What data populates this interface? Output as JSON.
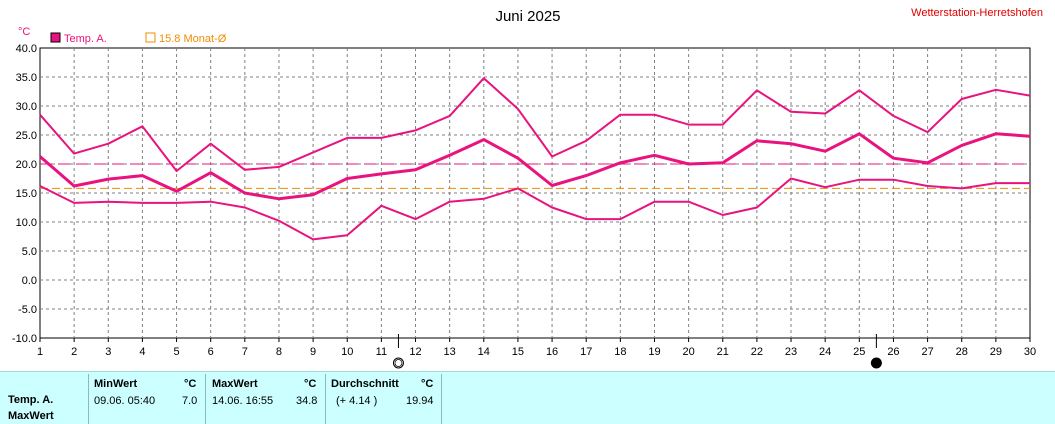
{
  "chart_data": {
    "type": "line",
    "title": "Juni 2025",
    "station": "Wetterstation-Herretshofen",
    "unit": "°C",
    "x": [
      1,
      2,
      3,
      4,
      5,
      6,
      7,
      8,
      9,
      10,
      11,
      12,
      13,
      14,
      15,
      16,
      17,
      18,
      19,
      20,
      21,
      22,
      23,
      24,
      25,
      26,
      27,
      28,
      29,
      30
    ],
    "xlim": [
      1,
      30
    ],
    "ylim": [
      -10,
      40
    ],
    "yticks": [
      "-10.0",
      "-5.0",
      "0.0",
      "5.0",
      "10.0",
      "15.0",
      "20.0",
      "25.0",
      "30.0",
      "35.0",
      "40.0"
    ],
    "grid": true,
    "legend_position": "top-left",
    "legend": [
      {
        "label": "Temp. A.",
        "color": "#e8137e"
      },
      {
        "label": "15.8 Monat-Ø",
        "color": "#f08c00"
      }
    ],
    "series": [
      {
        "role": "max",
        "color": "#e8137e",
        "values": [
          28.5,
          21.8,
          23.5,
          26.5,
          18.8,
          23.5,
          19.0,
          19.5,
          22.0,
          24.5,
          24.5,
          25.8,
          28.3,
          34.8,
          29.5,
          21.3,
          24.0,
          28.5,
          28.5,
          26.8,
          26.8,
          32.7,
          29.0,
          28.7,
          32.7,
          28.3,
          25.5,
          31.2,
          32.8,
          31.8
        ]
      },
      {
        "role": "mean",
        "color": "#e8137e",
        "values": [
          21.3,
          16.2,
          17.4,
          18.0,
          15.3,
          18.5,
          15.0,
          14.0,
          14.7,
          17.5,
          18.3,
          19.0,
          21.5,
          24.2,
          21.0,
          16.3,
          18.0,
          20.2,
          21.5,
          20.0,
          20.2,
          24.0,
          23.5,
          22.2,
          25.2,
          21.0,
          20.2,
          23.2,
          25.2,
          24.8
        ]
      },
      {
        "role": "min",
        "color": "#e8137e",
        "values": [
          16.2,
          13.3,
          13.5,
          13.3,
          13.3,
          13.5,
          12.5,
          10.2,
          7.0,
          7.7,
          12.8,
          10.5,
          13.5,
          14.0,
          15.8,
          12.5,
          10.5,
          10.5,
          13.5,
          13.5,
          11.2,
          12.5,
          17.5,
          16.0,
          17.3,
          17.3,
          16.2,
          15.8,
          16.7,
          16.7
        ]
      }
    ],
    "reference_lines": [
      {
        "value": 20.0,
        "color": "#e8137e",
        "style": "dashed"
      },
      {
        "value": 15.8,
        "color": "#f08c00",
        "style": "dashed"
      }
    ],
    "moon_phases": [
      {
        "day": 11.5,
        "phase": "first-quarter"
      },
      {
        "day": 25.5,
        "phase": "new"
      }
    ]
  },
  "stats": {
    "row_label_1": "Temp. A.",
    "row_label_2": "MaxWert",
    "min": {
      "header": "MinWert",
      "unit": "°C",
      "when": "09.06.  05:40",
      "value": "7.0"
    },
    "max": {
      "header": "MaxWert",
      "unit": "°C",
      "when": "14.06.  16:55",
      "value": "34.8"
    },
    "avg": {
      "header": "Durchschnitt",
      "unit": "°C",
      "delta": "(+ 4.14 )",
      "value": "19.94"
    }
  }
}
